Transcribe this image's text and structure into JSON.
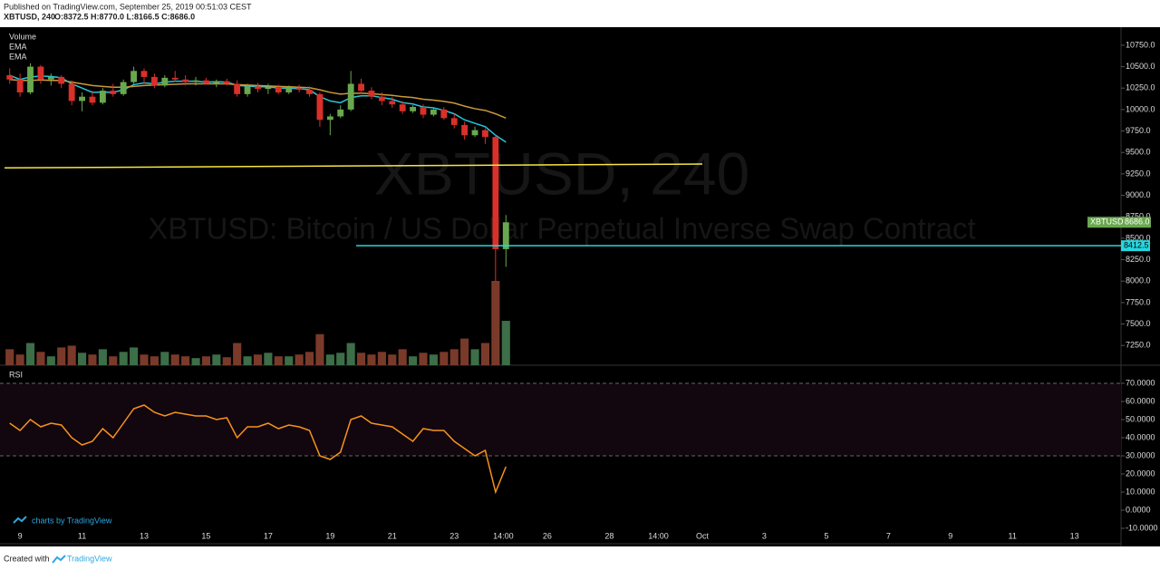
{
  "header": {
    "published": "Published on TradingView.com, September 25, 2019 00:51:03 CEST",
    "symbol": "XBTUSD, 240",
    "ohlc_legend": "O:8372.5 H:8770.0 L:8166.5 C:8686.0"
  },
  "branding": "charts by TradingView",
  "footer": {
    "created": "Created with",
    "brand": "TradingView"
  },
  "chart_data": [
    {
      "type": "candlestick",
      "title": "XBTUSD, 240",
      "subtitle": "XBTUSD: Bitcoin / US Dollar Perpetual Inverse Swap Contract",
      "up_color": "#6aa84f",
      "down_color": "#d9302a",
      "x": [
        8.667,
        9,
        9.333,
        9.667,
        10,
        10.333,
        10.667,
        11,
        11.333,
        11.667,
        12,
        12.333,
        12.667,
        13,
        13.333,
        13.667,
        14,
        14.333,
        14.667,
        15,
        15.333,
        15.667,
        16,
        16.333,
        16.667,
        17,
        17.333,
        17.667,
        18,
        18.333,
        18.667,
        19,
        19.333,
        19.667,
        20,
        20.333,
        20.667,
        21,
        21.333,
        21.667,
        22,
        22.333,
        22.667,
        23,
        23.333,
        23.667,
        24,
        24.333,
        24.667
      ],
      "ohlc": [
        [
          10400,
          10480,
          10300,
          10350
        ],
        [
          10350,
          10420,
          10150,
          10200
        ],
        [
          10200,
          10540,
          10180,
          10500
        ],
        [
          10500,
          10520,
          10300,
          10350
        ],
        [
          10350,
          10420,
          10280,
          10380
        ],
        [
          10380,
          10400,
          10250,
          10300
        ],
        [
          10300,
          10340,
          10050,
          10100
        ],
        [
          10100,
          10200,
          9980,
          10150
        ],
        [
          10150,
          10220,
          10050,
          10080
        ],
        [
          10080,
          10250,
          10060,
          10220
        ],
        [
          10220,
          10300,
          10150,
          10180
        ],
        [
          10180,
          10350,
          10160,
          10320
        ],
        [
          10320,
          10500,
          10300,
          10450
        ],
        [
          10450,
          10480,
          10300,
          10380
        ],
        [
          10380,
          10420,
          10250,
          10280
        ],
        [
          10280,
          10400,
          10260,
          10370
        ],
        [
          10370,
          10450,
          10320,
          10350
        ],
        [
          10350,
          10400,
          10280,
          10320
        ],
        [
          10320,
          10380,
          10280,
          10340
        ],
        [
          10340,
          10370,
          10290,
          10300
        ],
        [
          10300,
          10350,
          10260,
          10330
        ],
        [
          10330,
          10360,
          10280,
          10300
        ],
        [
          10300,
          10340,
          10150,
          10180
        ],
        [
          10180,
          10300,
          10150,
          10270
        ],
        [
          10270,
          10310,
          10200,
          10240
        ],
        [
          10240,
          10300,
          10180,
          10260
        ],
        [
          10260,
          10290,
          10180,
          10200
        ],
        [
          10200,
          10280,
          10180,
          10250
        ],
        [
          10250,
          10290,
          10200,
          10230
        ],
        [
          10230,
          10270,
          10150,
          10180
        ],
        [
          10180,
          10200,
          9800,
          9880
        ],
        [
          9880,
          9950,
          9700,
          9920
        ],
        [
          9920,
          10050,
          9900,
          10000
        ],
        [
          10000,
          10450,
          9980,
          10300
        ],
        [
          10300,
          10360,
          10180,
          10220
        ],
        [
          10220,
          10260,
          10120,
          10150
        ],
        [
          10150,
          10200,
          10050,
          10100
        ],
        [
          10100,
          10150,
          10020,
          10060
        ],
        [
          10060,
          10100,
          9950,
          9980
        ],
        [
          9980,
          10050,
          9960,
          10030
        ],
        [
          10030,
          10060,
          9900,
          9940
        ],
        [
          9940,
          10020,
          9920,
          10000
        ],
        [
          10000,
          10030,
          9880,
          9900
        ],
        [
          9900,
          9950,
          9780,
          9820
        ],
        [
          9820,
          9860,
          9650,
          9700
        ],
        [
          9700,
          9800,
          9680,
          9760
        ],
        [
          9760,
          9780,
          9600,
          9680
        ],
        [
          9680,
          9700,
          8000,
          8372.5
        ],
        [
          8372.5,
          8770,
          8166.5,
          8686
        ]
      ],
      "volume": {
        "name": "Volume",
        "up_color": "#3c6e47",
        "down_color": "#7a3a2a",
        "values": [
          18,
          12,
          25,
          15,
          10,
          20,
          22,
          14,
          12,
          18,
          10,
          15,
          20,
          12,
          10,
          15,
          12,
          10,
          8,
          10,
          12,
          9,
          25,
          10,
          12,
          14,
          10,
          10,
          12,
          15,
          35,
          12,
          14,
          25,
          14,
          12,
          15,
          12,
          18,
          10,
          14,
          12,
          15,
          18,
          30,
          18,
          25,
          95,
          50
        ]
      },
      "series": [
        {
          "name": "EMA",
          "color": "#26c6da",
          "values": [
            10400,
            10350,
            10380,
            10390,
            10385,
            10370,
            10300,
            10250,
            10200,
            10205,
            10200,
            10230,
            10290,
            10310,
            10300,
            10320,
            10330,
            10330,
            10330,
            10320,
            10325,
            10320,
            10280,
            10275,
            10265,
            10265,
            10250,
            10250,
            10245,
            10230,
            10150,
            10100,
            10080,
            10140,
            10160,
            10160,
            10140,
            10120,
            10080,
            10065,
            10030,
            10020,
            9990,
            9950,
            9880,
            9840,
            9800,
            9700,
            9620
          ]
        },
        {
          "name": "EMA",
          "color": "#c99b3a",
          "values": [
            10350,
            10340,
            10340,
            10345,
            10340,
            10340,
            10320,
            10300,
            10280,
            10270,
            10260,
            10260,
            10270,
            10280,
            10285,
            10290,
            10295,
            10300,
            10300,
            10300,
            10300,
            10300,
            10290,
            10285,
            10280,
            10275,
            10270,
            10265,
            10260,
            10255,
            10230,
            10200,
            10180,
            10190,
            10190,
            10185,
            10175,
            10165,
            10150,
            10140,
            10120,
            10110,
            10095,
            10075,
            10040,
            10010,
            9990,
            9950,
            9900
          ]
        }
      ],
      "lines": [
        {
          "color": "#f5e642",
          "x": [
            8.5,
            31
          ],
          "y": [
            9320,
            9365
          ]
        },
        {
          "color": "#26d7e0",
          "x": [
            19.84,
            44.5
          ],
          "y": [
            8412.5,
            8412.5
          ]
        }
      ],
      "price_tag": {
        "name": "XBTUSD",
        "value": 8686,
        "label": "8686.0",
        "color": "#6aa84f"
      },
      "xlim": [
        8.5,
        44.5
      ],
      "xticks": [
        9,
        11,
        13,
        15,
        17,
        19,
        21,
        23,
        {
          "value": 24.583,
          "label": "14:00"
        },
        26,
        28,
        {
          "value": 29.583,
          "label": "14:00"
        },
        {
          "value": 31,
          "label": "Oct"
        },
        {
          "value": 33,
          "label": "3"
        },
        {
          "value": 35,
          "label": "5"
        },
        {
          "value": 37,
          "label": "7"
        },
        {
          "value": 39,
          "label": "9"
        },
        {
          "value": 41,
          "label": "11"
        },
        {
          "value": 43,
          "label": "13"
        }
      ],
      "ylim": [
        7020,
        10960
      ],
      "yticks": [
        {
          "value": 7250,
          "label": "7250.0"
        },
        {
          "value": 7500,
          "label": "7500.0"
        },
        {
          "value": 7750,
          "label": "7750.0"
        },
        {
          "value": 8000,
          "label": "8000.0"
        },
        {
          "value": 8250,
          "label": "8250.0"
        },
        {
          "value": 8500,
          "label": "8500.0"
        },
        {
          "value": 8750,
          "label": "8750.0"
        },
        {
          "value": 9000,
          "label": "9000.0"
        },
        {
          "value": 9250,
          "label": "9250.0"
        },
        {
          "value": 9500,
          "label": "9500.0"
        },
        {
          "value": 9750,
          "label": "9750.0"
        },
        {
          "value": 10000,
          "label": "10000.0"
        },
        {
          "value": 10250,
          "label": "10250.0"
        },
        {
          "value": 10500,
          "label": "10500.0"
        },
        {
          "value": 10750,
          "label": "10750.0"
        }
      ]
    },
    {
      "type": "line",
      "title": "RSI",
      "color": "#f7931a",
      "band": [
        30,
        70
      ],
      "band_color": "#12060f",
      "values": [
        48,
        44,
        50,
        46,
        48,
        47,
        40,
        36,
        38,
        45,
        40,
        48,
        56,
        58,
        54,
        52,
        54,
        53,
        52,
        52,
        50,
        51,
        40,
        46,
        46,
        48,
        45,
        47,
        46,
        44,
        30,
        28,
        32,
        50,
        52,
        48,
        47,
        46,
        42,
        38,
        45,
        44,
        44,
        38,
        34,
        30,
        33,
        10,
        24
      ],
      "ylim": [
        -18.5,
        80
      ],
      "yticks": [
        {
          "value": -10,
          "label": "-10.0000"
        },
        {
          "value": 0,
          "label": "0.0000"
        },
        {
          "value": 10,
          "label": "10.0000"
        },
        {
          "value": 20,
          "label": "20.0000"
        },
        {
          "value": 30,
          "label": "30.0000"
        },
        {
          "value": 40,
          "label": "40.0000"
        },
        {
          "value": 50,
          "label": "50.0000"
        },
        {
          "value": 60,
          "label": "60.0000"
        },
        {
          "value": 70,
          "label": "70.0000"
        }
      ]
    }
  ]
}
